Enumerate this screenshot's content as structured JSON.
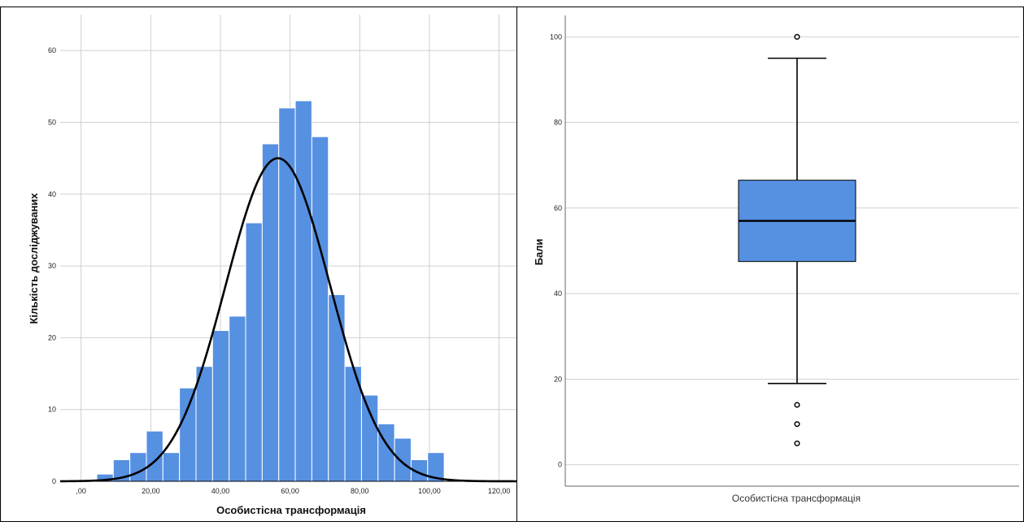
{
  "chart_data": [
    {
      "type": "bar",
      "subtype": "histogram",
      "xlabel": "Особистісна трансформація",
      "ylabel": "Кількість досліджуваних",
      "xlim": [
        -6,
        125
      ],
      "ylim": [
        0,
        65
      ],
      "x_ticks": [
        0,
        20,
        40,
        60,
        80,
        100,
        120
      ],
      "x_tick_labels": [
        ",00",
        "20,00",
        "40,00",
        "60,00",
        "80,00",
        "100,00",
        "120,00"
      ],
      "y_ticks": [
        0,
        10,
        20,
        30,
        40,
        50,
        60
      ],
      "y_tick_labels": [
        "0",
        "10",
        "20",
        "30",
        "40",
        "50",
        "60"
      ],
      "bin_width": 4.75,
      "bins": [
        {
          "start": 4.5,
          "count": 1
        },
        {
          "start": 9.25,
          "count": 3
        },
        {
          "start": 14.0,
          "count": 4
        },
        {
          "start": 18.75,
          "count": 7
        },
        {
          "start": 23.5,
          "count": 4
        },
        {
          "start": 28.25,
          "count": 13
        },
        {
          "start": 33.0,
          "count": 16
        },
        {
          "start": 37.75,
          "count": 21
        },
        {
          "start": 42.5,
          "count": 23
        },
        {
          "start": 47.25,
          "count": 36
        },
        {
          "start": 52.0,
          "count": 47
        },
        {
          "start": 56.75,
          "count": 52
        },
        {
          "start": 61.5,
          "count": 53
        },
        {
          "start": 66.25,
          "count": 48
        },
        {
          "start": 71.0,
          "count": 26
        },
        {
          "start": 75.75,
          "count": 16
        },
        {
          "start": 80.5,
          "count": 12
        },
        {
          "start": 85.25,
          "count": 8
        },
        {
          "start": 90.0,
          "count": 6
        },
        {
          "start": 94.75,
          "count": 3
        },
        {
          "start": 99.5,
          "count": 4
        }
      ],
      "normal_curve": {
        "mean": 56.5,
        "sd": 15.0,
        "peak": 45
      },
      "grid": true,
      "bar_color": "#5690e1",
      "curve_color": "#000000"
    },
    {
      "type": "box",
      "xlabel": "Особистісна трансформація",
      "ylabel": "Бали",
      "ylim": [
        -5,
        105
      ],
      "y_ticks": [
        0,
        20,
        40,
        60,
        80,
        100
      ],
      "y_tick_labels": [
        "0",
        "20",
        "40",
        "60",
        "80",
        "100"
      ],
      "whisker_low": 19,
      "q1": 47.5,
      "median": 57,
      "q3": 66.5,
      "whisker_high": 95,
      "outliers": [
        100,
        14,
        9.5,
        5
      ],
      "grid": true,
      "box_color": "#5690e1"
    }
  ]
}
